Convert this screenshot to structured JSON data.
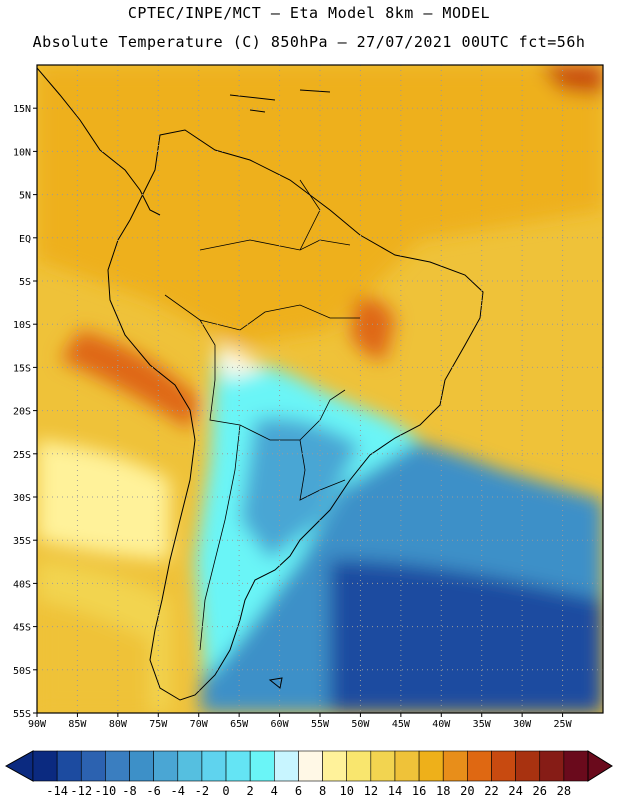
{
  "header": {
    "line1": "CPTEC/INPE/MCT –  Eta Model 8km – MODEL",
    "line2": "Absolute Temperature (C) 850hPa – 27/07/2021 00UTC fct=56h"
  },
  "map": {
    "lat_labels": [
      "15N",
      "10N",
      "5N",
      "EQ",
      "5S",
      "10S",
      "15S",
      "20S",
      "25S",
      "30S",
      "35S",
      "40S",
      "45S",
      "50S",
      "55S"
    ],
    "lon_labels": [
      "90W",
      "85W",
      "80W",
      "75W",
      "70W",
      "65W",
      "60W",
      "55W",
      "50W",
      "45W",
      "40W",
      "35W",
      "30W",
      "25W"
    ],
    "lat_values": [
      15,
      10,
      5,
      0,
      -5,
      -10,
      -15,
      -20,
      -25,
      -30,
      -35,
      -40,
      -45,
      -50,
      -55
    ],
    "lon_values": [
      -90,
      -85,
      -80,
      -75,
      -70,
      -65,
      -60,
      -55,
      -50,
      -45,
      -40,
      -35,
      -30,
      -25
    ],
    "extent": {
      "lon_min": -90,
      "lon_max": -20,
      "lat_min": -55,
      "lat_max": 20
    }
  },
  "colorbar": {
    "labels": [
      "-14",
      "-12",
      "-10",
      "-8",
      "-6",
      "-4",
      "-2",
      "0",
      "2",
      "4",
      "6",
      "8",
      "10",
      "12",
      "14",
      "16",
      "18",
      "20",
      "22",
      "24",
      "26",
      "28"
    ],
    "colors": [
      "#0b2a80",
      "#1c4ba0",
      "#2c62b0",
      "#3a7ec0",
      "#3d90c8",
      "#4aa6d4",
      "#55bfe0",
      "#5fd3ee",
      "#64e4f4",
      "#6af5f7",
      "#c8f5ff",
      "#fff8e6",
      "#fff29a",
      "#f9e66e",
      "#f2d450",
      "#efc239",
      "#eeb01a",
      "#e88e1a",
      "#df6812",
      "#c84a10",
      "#a83210",
      "#861c16",
      "#6a0a1c"
    ],
    "under_color": "#0b2a80",
    "over_color": "#6a0a1c"
  }
}
